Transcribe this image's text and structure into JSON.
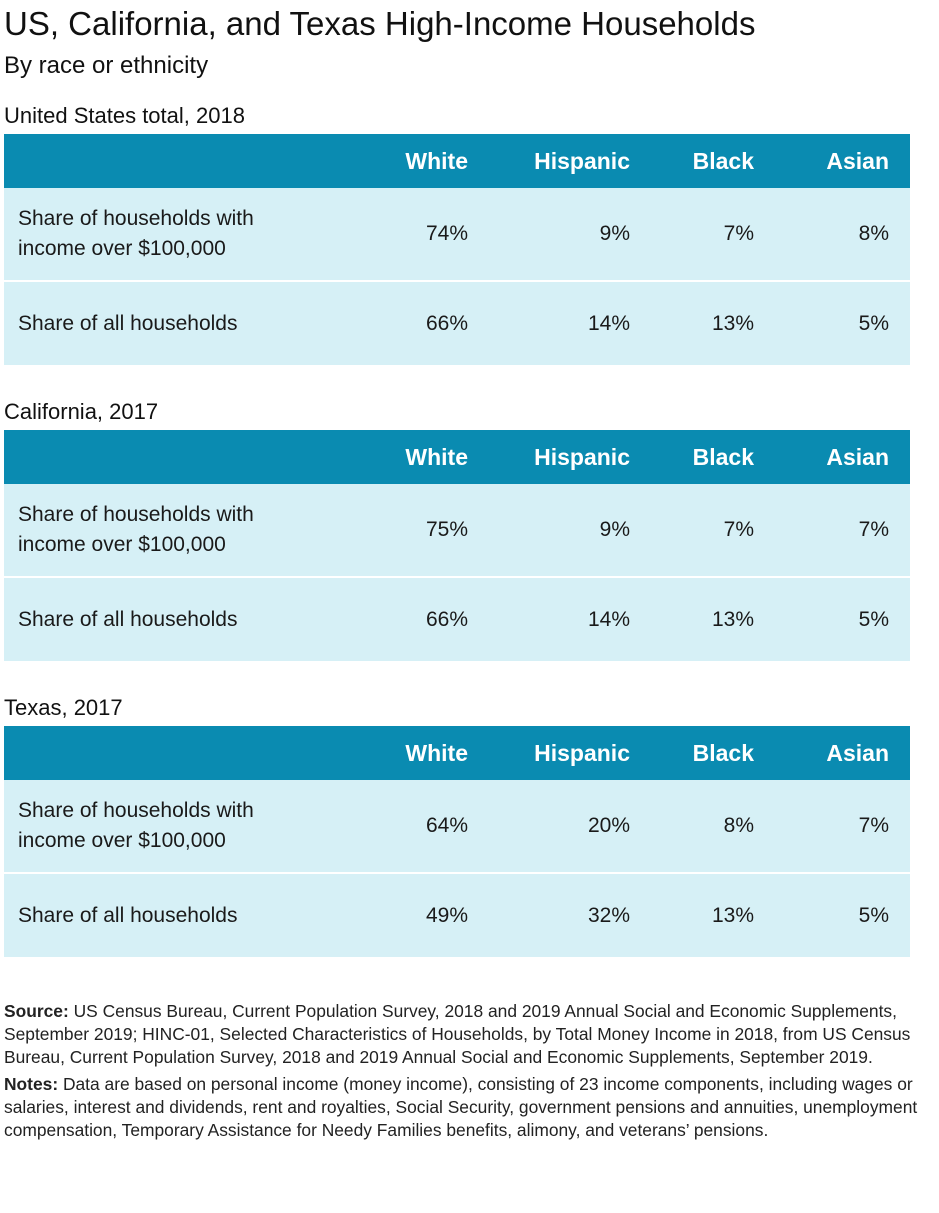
{
  "title": "US, California, and Texas High-Income Households",
  "subtitle": "By race or ethnicity",
  "columns": [
    "White",
    "Hispanic",
    "Black",
    "Asian"
  ],
  "sections": [
    {
      "label": "United States total, 2018",
      "rows": [
        {
          "label": "Share of households with income over $100,000",
          "values": [
            "74%",
            "9%",
            "7%",
            "8%"
          ]
        },
        {
          "label": "Share of all households",
          "values": [
            "66%",
            "14%",
            "13%",
            "5%"
          ]
        }
      ]
    },
    {
      "label": "California, 2017",
      "rows": [
        {
          "label": "Share of households with income over $100,000",
          "values": [
            "75%",
            "9%",
            "7%",
            "7%"
          ]
        },
        {
          "label": "Share of all households",
          "values": [
            "66%",
            "14%",
            "13%",
            "5%"
          ]
        }
      ]
    },
    {
      "label": "Texas, 2017",
      "rows": [
        {
          "label": "Share of households with income over $100,000",
          "values": [
            "64%",
            "20%",
            "8%",
            "7%"
          ]
        },
        {
          "label": "Share of all households",
          "values": [
            "49%",
            "32%",
            "13%",
            "5%"
          ]
        }
      ]
    }
  ],
  "source": {
    "label": "Source:",
    "text": "US Census Bureau, Current Population Survey, 2018 and 2019 Annual Social and Economic Supplements, September 2019; HINC-01, Selected Characteristics of Households, by Total Money Income in 2018, from US Census Bureau, Current Population Survey, 2018 and 2019 Annual Social and Economic Supplements, September 2019."
  },
  "notes": {
    "label": "Notes:",
    "text": "Data are based on personal income (money income), consisting of 23 income components, including wages or salaries, interest and dividends, rent and royalties, Social Security, government pensions and annuities, unemployment compensation, Temporary Assistance for Needy Families benefits, alimony, and veterans’ pensions."
  },
  "colors": {
    "header_bg": "#0a8bb1",
    "header_text": "#ffffff",
    "row_bg": "#d6f0f6"
  },
  "chart_data": [
    {
      "type": "table",
      "title": "United States total, 2018",
      "categories": [
        "White",
        "Hispanic",
        "Black",
        "Asian"
      ],
      "series": [
        {
          "name": "Share of households with income over $100,000",
          "values": [
            74,
            9,
            7,
            8
          ]
        },
        {
          "name": "Share of all households",
          "values": [
            66,
            14,
            13,
            5
          ]
        }
      ]
    },
    {
      "type": "table",
      "title": "California, 2017",
      "categories": [
        "White",
        "Hispanic",
        "Black",
        "Asian"
      ],
      "series": [
        {
          "name": "Share of households with income over $100,000",
          "values": [
            75,
            9,
            7,
            7
          ]
        },
        {
          "name": "Share of all households",
          "values": [
            66,
            14,
            13,
            5
          ]
        }
      ]
    },
    {
      "type": "table",
      "title": "Texas, 2017",
      "categories": [
        "White",
        "Hispanic",
        "Black",
        "Asian"
      ],
      "series": [
        {
          "name": "Share of households with income over $100,000",
          "values": [
            64,
            20,
            8,
            7
          ]
        },
        {
          "name": "Share of all households",
          "values": [
            49,
            32,
            13,
            5
          ]
        }
      ]
    }
  ]
}
